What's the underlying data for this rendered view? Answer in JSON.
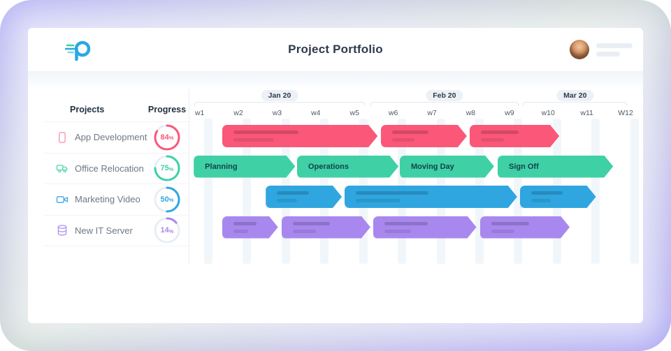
{
  "header": {
    "title": "Project Portfolio",
    "logo_icon": "projectmanager-logo",
    "avatar_icon": "user-avatar-photo"
  },
  "side": {
    "projects_header": "Projects",
    "progress_header": "Progress"
  },
  "timeline": {
    "months": [
      {
        "label": "Jan 20",
        "left_pct": 0.9,
        "width_pct": 37.7
      },
      {
        "label": "Feb 20",
        "left_pct": 39.8,
        "width_pct": 32.7
      },
      {
        "label": "Mar 20",
        "left_pct": 73.5,
        "width_pct": 23.0
      }
    ],
    "weeks": [
      "w1",
      "w2",
      "w3",
      "w4",
      "w5",
      "w6",
      "w7",
      "w8",
      "w9",
      "w10",
      "w11",
      "W12"
    ]
  },
  "projects": [
    {
      "name": "App Development",
      "icon": "mobile-app-icon",
      "color": "#fb5779",
      "icon_color": "#f8a0b4",
      "progress": 84,
      "bars": [
        {
          "label": "",
          "placeholder": true,
          "left_pct": 7.1,
          "width_pct": 34.3
        },
        {
          "label": "",
          "placeholder": true,
          "left_pct": 42.1,
          "width_pct": 19.0
        },
        {
          "label": "",
          "placeholder": true,
          "left_pct": 61.7,
          "width_pct": 19.8
        }
      ]
    },
    {
      "name": "Office Relocation",
      "icon": "truck-icon",
      "color": "#3fd0a6",
      "icon_color": "#57d6b2",
      "progress": 75,
      "bars": [
        {
          "label": "Planning",
          "placeholder": false,
          "left_pct": 0.8,
          "width_pct": 22.4
        },
        {
          "label": "Operations",
          "placeholder": false,
          "left_pct": 23.6,
          "width_pct": 22.4
        },
        {
          "label": "Moving Day",
          "placeholder": false,
          "left_pct": 46.3,
          "width_pct": 20.8
        },
        {
          "label": "Sign Off",
          "placeholder": false,
          "left_pct": 67.9,
          "width_pct": 25.5
        }
      ]
    },
    {
      "name": "Marketing Video",
      "icon": "video-camera-icon",
      "color": "#2fa6e0",
      "icon_color": "#4aace4",
      "progress": 50,
      "bars": [
        {
          "label": "",
          "placeholder": true,
          "left_pct": 16.7,
          "width_pct": 16.8
        },
        {
          "label": "",
          "placeholder": true,
          "left_pct": 34.1,
          "width_pct": 38.1
        },
        {
          "label": "",
          "placeholder": true,
          "left_pct": 72.8,
          "width_pct": 16.8
        }
      ]
    },
    {
      "name": "New IT Server",
      "icon": "server-icon",
      "color": "#a888ee",
      "icon_color": "#b394f0",
      "progress": 14,
      "bars": [
        {
          "label": "",
          "placeholder": true,
          "left_pct": 7.1,
          "width_pct": 12.3
        },
        {
          "label": "",
          "placeholder": true,
          "left_pct": 20.2,
          "width_pct": 19.6
        },
        {
          "label": "",
          "placeholder": true,
          "left_pct": 40.4,
          "width_pct": 22.8
        },
        {
          "label": "",
          "placeholder": true,
          "left_pct": 64.0,
          "width_pct": 19.8
        }
      ]
    }
  ]
}
